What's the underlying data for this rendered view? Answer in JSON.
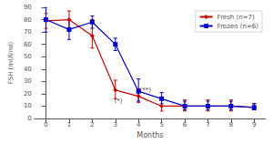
{
  "chart_data": {
    "type": "line",
    "xlabel": "Months",
    "ylabel": "FSH (mUI/ml)",
    "x": [
      0,
      1,
      2,
      3,
      4,
      5,
      6,
      7,
      8,
      9
    ],
    "series": [
      {
        "name": "Fresh (n=7)",
        "color": "#cc0000",
        "marker": "diamond",
        "values": [
          79,
          80,
          67,
          23,
          18,
          10,
          10,
          10,
          10,
          9
        ],
        "yerr_lo": [
          6,
          7,
          10,
          7,
          5,
          4,
          4,
          4,
          4,
          2
        ],
        "yerr_hi": [
          6,
          7,
          13,
          8,
          6,
          5,
          5,
          5,
          5,
          3
        ]
      },
      {
        "name": "Frozen (n=6)",
        "color": "#0000cc",
        "marker": "square",
        "values": [
          80,
          72,
          78,
          60,
          22,
          16,
          10,
          10,
          10,
          9
        ],
        "yerr_lo": [
          10,
          8,
          5,
          5,
          8,
          4,
          3,
          3,
          3,
          2
        ],
        "yerr_hi": [
          10,
          8,
          5,
          5,
          10,
          5,
          4,
          4,
          4,
          3
        ]
      }
    ],
    "xlim": [
      -0.5,
      9.5
    ],
    "xticks": [
      0,
      1,
      2,
      3,
      4,
      5,
      6,
      7,
      8,
      9
    ],
    "ylim": [
      0,
      90
    ],
    "yticks": [
      0,
      10,
      20,
      30,
      40,
      50,
      60,
      70,
      80,
      90
    ],
    "grid": false,
    "legend": "upper right",
    "annotations": [
      {
        "text": "(*)",
        "x": 2.95,
        "y": 14
      },
      {
        "text": "(**)",
        "x": 4.05,
        "y": 23
      }
    ]
  }
}
